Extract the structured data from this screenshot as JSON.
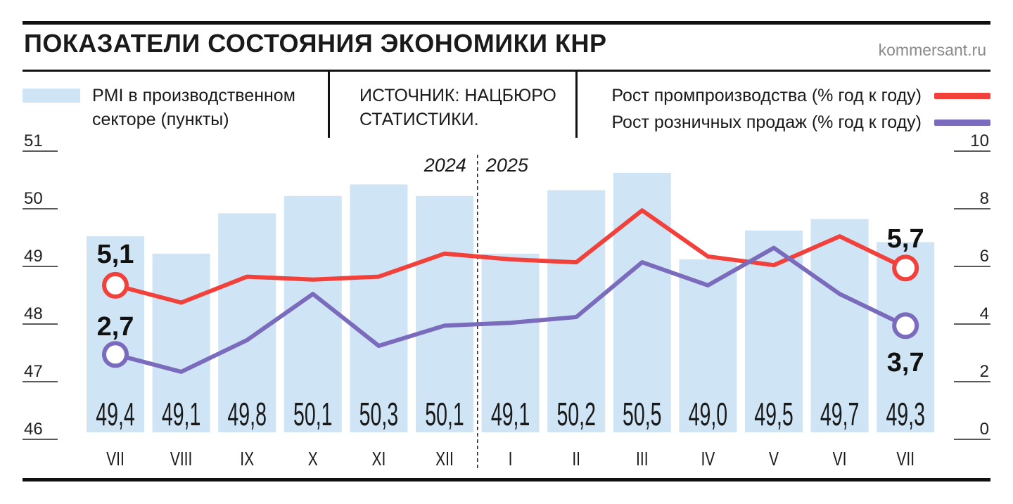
{
  "header": {
    "title": "ПОКАЗАТЕЛИ СОСТОЯНИЯ ЭКОНОМИКИ КНР",
    "site": "kommersant.ru"
  },
  "legend": {
    "pmi": "PMI в производственном секторе (пункты)",
    "source": "ИСТОЧНИК: НАЦБЮРО СТАТИСТИКИ.",
    "industry": "Рост промпроизводства (% год к году)",
    "retail": "Рост розничных продаж (% год к году)"
  },
  "chart_data": {
    "type": "bar",
    "categories": [
      "VII",
      "VIII",
      "IX",
      "X",
      "XI",
      "XII",
      "I",
      "II",
      "III",
      "IV",
      "V",
      "VI",
      "VII"
    ],
    "year_labels": [
      "2024",
      "2025"
    ],
    "series": [
      {
        "name": "PMI в производственном секторе (пункты)",
        "type": "bar",
        "axis": "left",
        "values": [
          49.4,
          49.1,
          49.8,
          50.1,
          50.3,
          50.1,
          49.1,
          50.2,
          50.5,
          49.0,
          49.5,
          49.7,
          49.3
        ],
        "value_labels": [
          "49,4",
          "49,1",
          "49,8",
          "50,1",
          "50,3",
          "50,1",
          "49,1",
          "50,2",
          "50,5",
          "49,0",
          "49,5",
          "49,7",
          "49,3"
        ],
        "color": "#cfe4f4"
      },
      {
        "name": "Рост промпроизводства (% год к году)",
        "type": "line",
        "axis": "right",
        "values": [
          5.1,
          4.5,
          5.4,
          5.3,
          5.4,
          6.2,
          6.0,
          5.9,
          7.7,
          6.1,
          5.8,
          6.8,
          5.7
        ],
        "endpoint_labels": [
          "5,1",
          "5,7"
        ],
        "color": "#f2403a"
      },
      {
        "name": "Рост розничных продаж (% год к году)",
        "type": "line",
        "axis": "right",
        "values": [
          2.7,
          2.1,
          3.2,
          4.8,
          3.0,
          3.7,
          3.8,
          4.0,
          5.9,
          5.1,
          6.4,
          4.8,
          3.7
        ],
        "endpoint_labels": [
          "2,7",
          "3,7"
        ],
        "color": "#7b6bbd"
      }
    ],
    "y_left": {
      "ylim": [
        46,
        51
      ],
      "ticks": [
        "46",
        "47",
        "48",
        "49",
        "50",
        "51"
      ]
    },
    "y_right": {
      "ylim": [
        0,
        10
      ],
      "ticks": [
        "0",
        "2",
        "4",
        "6",
        "8",
        "10"
      ]
    },
    "grid": false,
    "legend_position": "top"
  }
}
